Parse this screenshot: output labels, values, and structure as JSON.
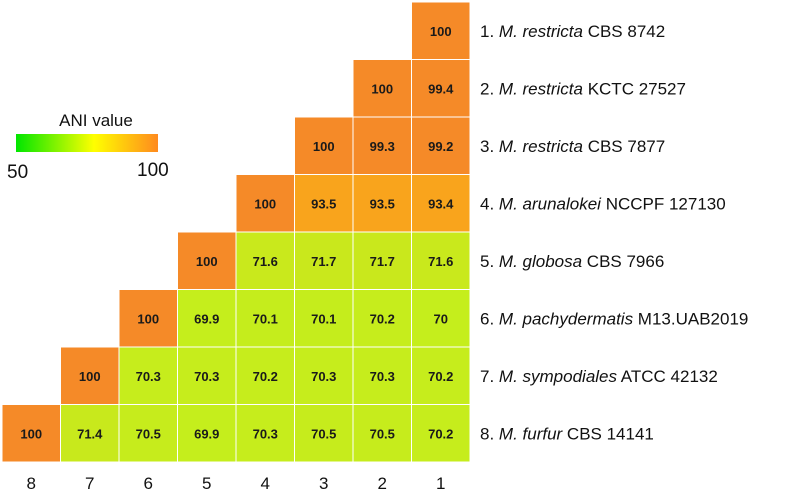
{
  "chart_data": {
    "type": "heatmap",
    "title": "",
    "x_tick_labels": [
      "8",
      "7",
      "6",
      "5",
      "4",
      "3",
      "2",
      "1"
    ],
    "rows": [
      {
        "label": {
          "num": "1.",
          "genus": "M.",
          "species": "restricta",
          "strain": "CBS 8742"
        },
        "values": [
          100
        ]
      },
      {
        "label": {
          "num": "2.",
          "genus": "M.",
          "species": "restricta",
          "strain": "KCTC 27527"
        },
        "values": [
          100,
          99.4
        ]
      },
      {
        "label": {
          "num": "3.",
          "genus": "M.",
          "species": "restricta",
          "strain": "CBS 7877"
        },
        "values": [
          100,
          99.3,
          99.2
        ]
      },
      {
        "label": {
          "num": "4.",
          "genus": "M.",
          "species": "arunalokei",
          "strain": "NCCPF 127130"
        },
        "values": [
          100,
          93.5,
          93.5,
          93.4
        ]
      },
      {
        "label": {
          "num": "5.",
          "genus": "M.",
          "species": "globosa",
          "strain": "CBS 7966"
        },
        "values": [
          100,
          71.6,
          71.7,
          71.7,
          71.6
        ]
      },
      {
        "label": {
          "num": "6.",
          "genus": "M.",
          "species": "pachydermatis",
          "strain": "M13.UAB2019"
        },
        "values": [
          100,
          69.9,
          70.1,
          70.1,
          70.2,
          70
        ]
      },
      {
        "label": {
          "num": "7.",
          "genus": "M.",
          "species": "sympodiales",
          "strain": "ATCC 42132"
        },
        "values": [
          100,
          70.3,
          70.3,
          70.2,
          70.3,
          70.3,
          70.2
        ]
      },
      {
        "label": {
          "num": "8.",
          "genus": "M.",
          "species": "furfur",
          "strain": "CBS 14141"
        },
        "values": [
          100,
          71.4,
          70.5,
          69.9,
          70.3,
          70.5,
          70.5,
          70.2
        ]
      }
    ],
    "legend": {
      "title": "ANI value",
      "min_label": "50",
      "max_label": "100",
      "range": [
        50,
        100
      ],
      "placement": "left",
      "colors": [
        "#00e600",
        "#ffff00",
        "#ff8a1e"
      ]
    },
    "colors": {
      "cell_100": "#f58a28",
      "cell_93": "#f9a41c",
      "cell_70": "#c5ee1c",
      "cell_border": "#ffffff"
    }
  }
}
